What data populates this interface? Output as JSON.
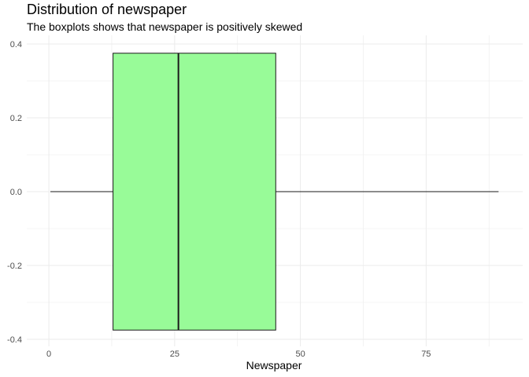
{
  "chart_data": {
    "type": "boxplot",
    "title": "Distribution of newspaper",
    "subtitle": "The boxplots shows that newspaper is positively skewed",
    "xlabel": "Newspaper",
    "ylabel": "",
    "xlim": [
      -4.4,
      94.2
    ],
    "ylim": [
      -0.4,
      0.4
    ],
    "x_ticks": [
      0,
      25,
      50,
      75
    ],
    "x_tick_labels": [
      "0",
      "25",
      "50",
      "75"
    ],
    "y_ticks": [
      0.4,
      0.2,
      0.0,
      -0.2,
      -0.4
    ],
    "y_tick_labels": [
      "0.4",
      "0.2",
      "0.0",
      "-0.2",
      "-0.4"
    ],
    "grid": true,
    "box": {
      "min": 0.3,
      "q1": 12.75,
      "median": 25.75,
      "q3": 45.1,
      "max": 89.4,
      "box_y_range": [
        -0.375,
        0.375
      ],
      "fill": "#98FB98",
      "stroke": "#1a1a1a"
    }
  }
}
